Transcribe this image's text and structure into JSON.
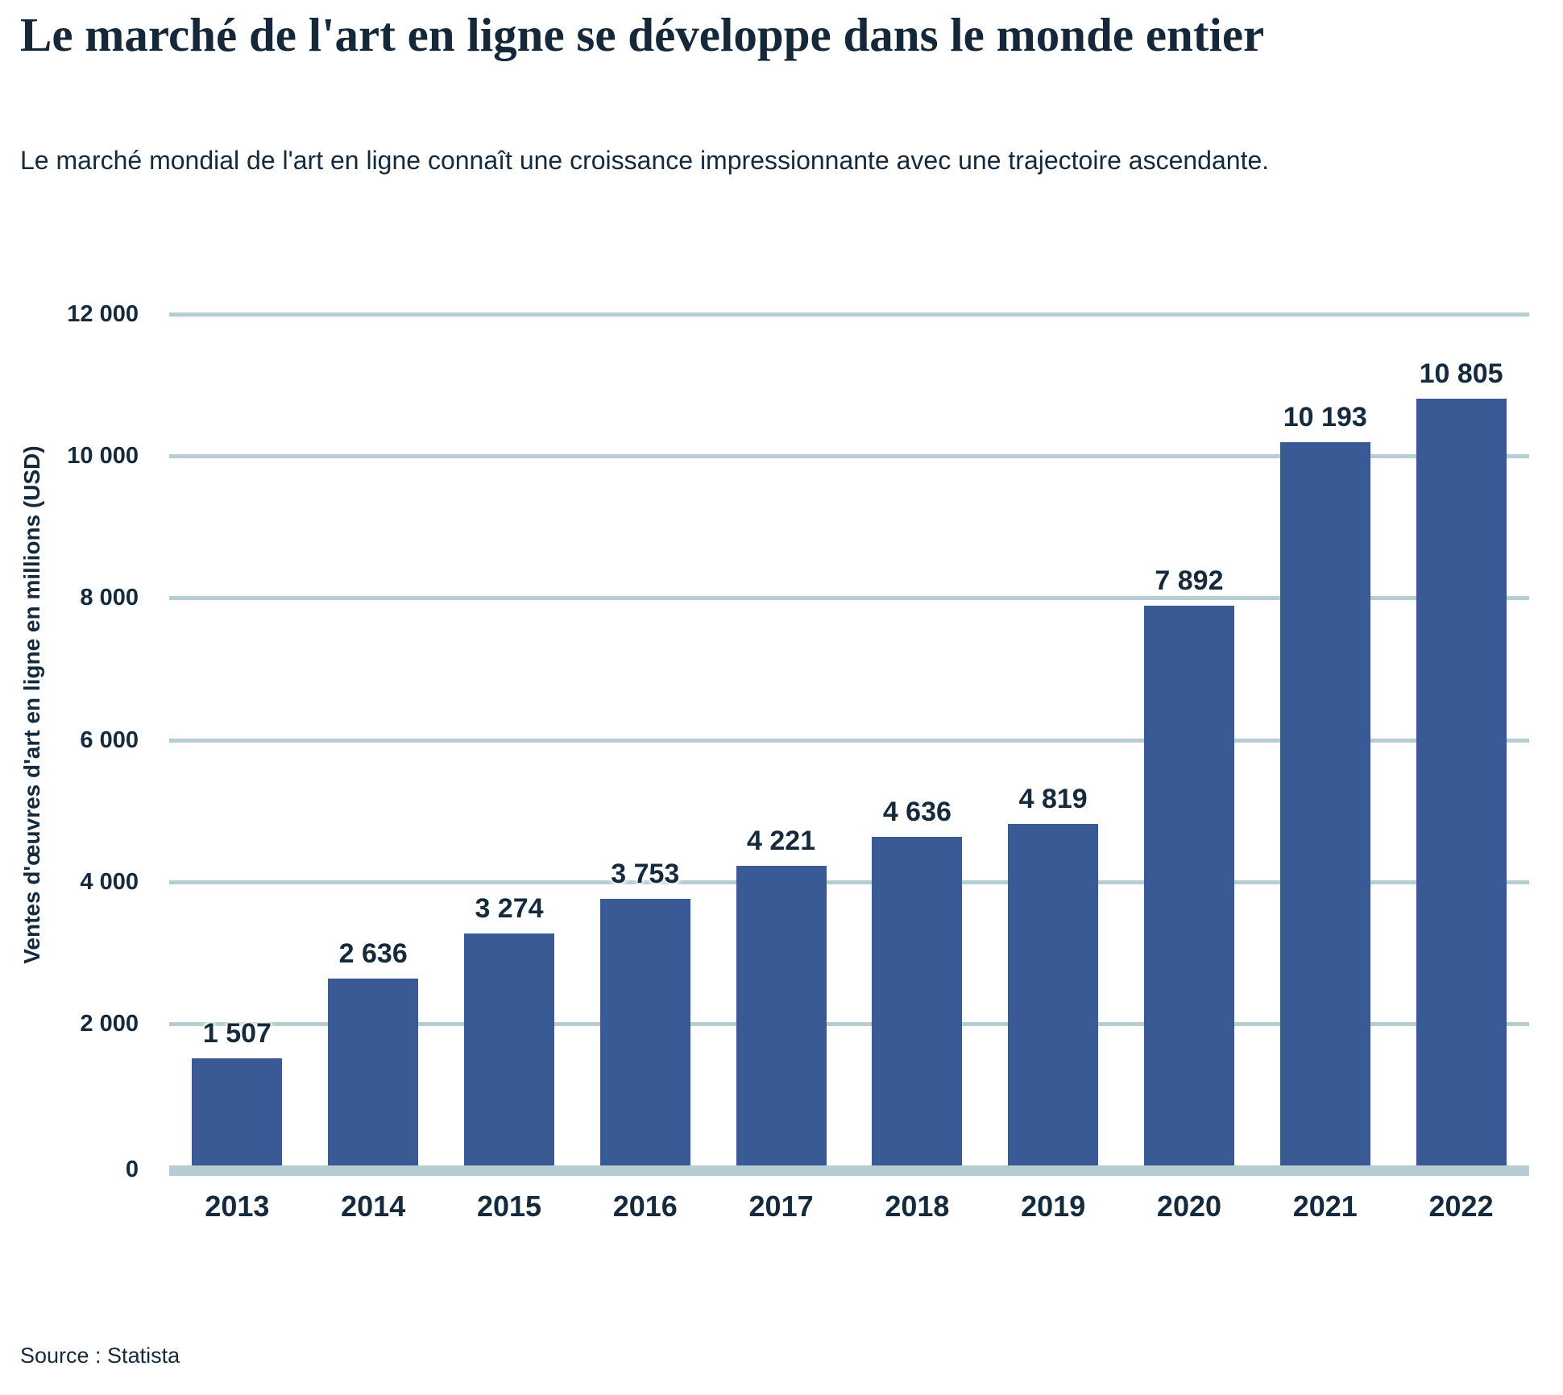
{
  "header": {
    "title": "Le marché de l'art en ligne se développe dans le monde entier",
    "subtitle": "Le marché mondial de l'art en ligne connaît une croissance impressionnante avec une trajectoire ascendante."
  },
  "footer": {
    "source_label": "Source : Statista"
  },
  "colors": {
    "bar": "#3A5A96",
    "grid": "#B6CED3",
    "text": "#152A3C",
    "background": "#FFFFFF"
  },
  "chart_data": {
    "type": "bar",
    "title": "Le marché de l'art en ligne se développe dans le monde entier",
    "subtitle": "Le marché mondial de l'art en ligne connaît une croissance impressionnante avec une trajectoire ascendante.",
    "categories": [
      "2013",
      "2014",
      "2015",
      "2016",
      "2017",
      "2018",
      "2019",
      "2020",
      "2021",
      "2022"
    ],
    "values": [
      1507,
      2636,
      3274,
      3753,
      4221,
      4636,
      4819,
      7892,
      10193,
      10805
    ],
    "value_labels": [
      "1 507",
      "2 636",
      "3 274",
      "3 753",
      "4 221",
      "4 636",
      "4 819",
      "7 892",
      "10 193",
      "10 805"
    ],
    "xlabel": "",
    "ylabel": "Ventes d'œuvres d'art en ligne en millions (USD)",
    "ylim": [
      0,
      12000
    ],
    "yticks": [
      0,
      2000,
      4000,
      6000,
      8000,
      10000,
      12000
    ],
    "ytick_labels": [
      "0",
      "2 000",
      "4 000",
      "6 000",
      "8 000",
      "10 000",
      "12 000"
    ],
    "grid": true,
    "legend": false,
    "source": "Source : Statista"
  }
}
